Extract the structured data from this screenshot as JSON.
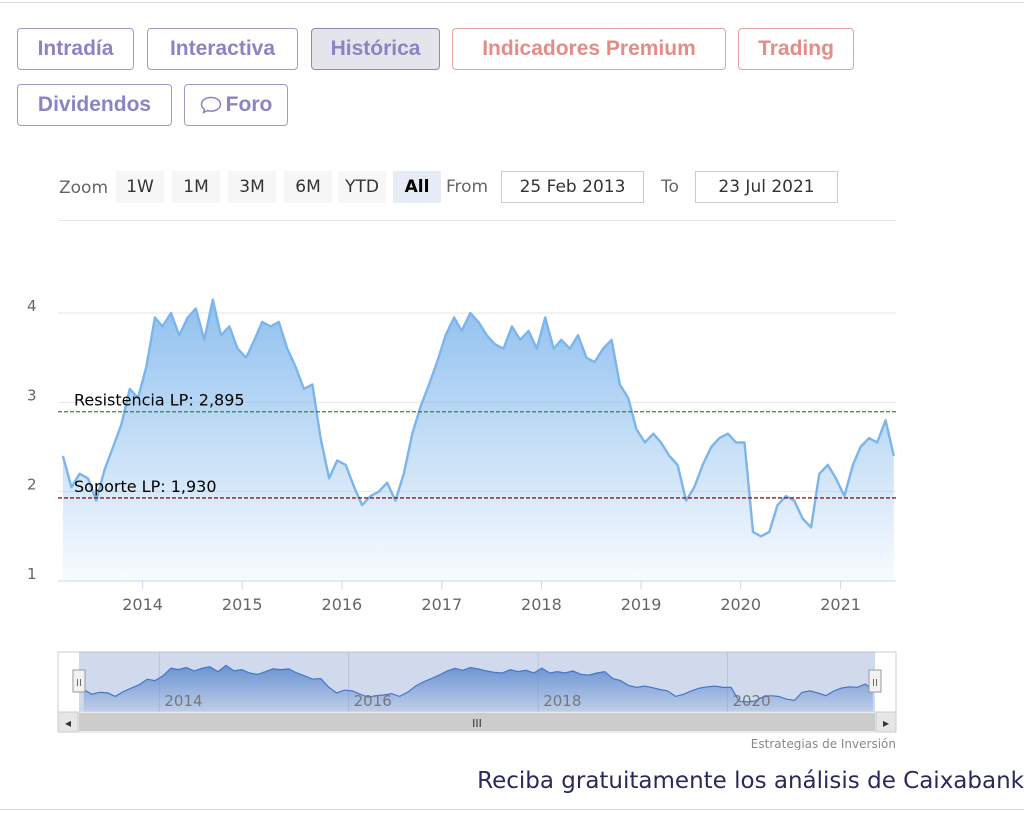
{
  "tabs": [
    {
      "label": "Intradía",
      "style": "normal"
    },
    {
      "label": "Interactiva",
      "style": "normal"
    },
    {
      "label": "Histórica",
      "style": "active"
    },
    {
      "label": "Indicadores Premium",
      "style": "premium"
    },
    {
      "label": "Trading",
      "style": "premium"
    },
    {
      "label": "Dividendos",
      "style": "normal"
    },
    {
      "label": "Foro",
      "style": "normal",
      "icon": "chat-bubble-icon"
    }
  ],
  "range_selector": {
    "zoom_label": "Zoom",
    "buttons": [
      "1W",
      "1M",
      "3M",
      "6M",
      "YTD",
      "All"
    ],
    "selected": "All",
    "from_label": "From",
    "from_value": "25 Feb 2013",
    "to_label": "To",
    "to_value": "23 Jul 2021"
  },
  "chart_data": {
    "type": "area",
    "x_range": [
      "2013-02-25",
      "2021-07-23"
    ],
    "x_ticks": [
      "2014",
      "2015",
      "2016",
      "2017",
      "2018",
      "2019",
      "2020",
      "2021"
    ],
    "y_ticks": [
      1,
      2,
      3,
      4
    ],
    "ylim": [
      1,
      4
    ],
    "grid": true,
    "series_color": "#7cb5ec",
    "series": [
      {
        "x": [
          "2013-03",
          "2013-04",
          "2013-05",
          "2013-06",
          "2013-07",
          "2013-08",
          "2013-09",
          "2013-10",
          "2013-11",
          "2013-12",
          "2014-01",
          "2014-02",
          "2014-03",
          "2014-04",
          "2014-05",
          "2014-06",
          "2014-07",
          "2014-08",
          "2014-09",
          "2014-10",
          "2014-11",
          "2014-12",
          "2015-01",
          "2015-02",
          "2015-03",
          "2015-04",
          "2015-05",
          "2015-06",
          "2015-07",
          "2015-08",
          "2015-09",
          "2015-10",
          "2015-11",
          "2015-12",
          "2016-01",
          "2016-02",
          "2016-03",
          "2016-04",
          "2016-05",
          "2016-06",
          "2016-07",
          "2016-08",
          "2016-09",
          "2016-10",
          "2016-11",
          "2016-12",
          "2017-01",
          "2017-02",
          "2017-03",
          "2017-04",
          "2017-05",
          "2017-06",
          "2017-07",
          "2017-08",
          "2017-09",
          "2017-10",
          "2017-11",
          "2017-12",
          "2018-01",
          "2018-02",
          "2018-03",
          "2018-04",
          "2018-05",
          "2018-06",
          "2018-07",
          "2018-08",
          "2018-09",
          "2018-10",
          "2018-11",
          "2018-12",
          "2019-01",
          "2019-02",
          "2019-03",
          "2019-04",
          "2019-05",
          "2019-06",
          "2019-07",
          "2019-08",
          "2019-09",
          "2019-10",
          "2019-11",
          "2019-12",
          "2020-01",
          "2020-02",
          "2020-03",
          "2020-04",
          "2020-05",
          "2020-06",
          "2020-07",
          "2020-08",
          "2020-09",
          "2020-10",
          "2020-11",
          "2020-12",
          "2021-01",
          "2021-02",
          "2021-03",
          "2021-04",
          "2021-05",
          "2021-06",
          "2021-07"
        ],
        "values": [
          2.4,
          2.05,
          2.2,
          2.15,
          1.9,
          2.25,
          2.5,
          2.75,
          3.15,
          3.05,
          3.4,
          3.95,
          3.85,
          4.0,
          3.75,
          3.95,
          4.05,
          3.7,
          4.15,
          3.75,
          3.85,
          3.6,
          3.5,
          3.7,
          3.9,
          3.85,
          3.9,
          3.6,
          3.4,
          3.15,
          3.2,
          2.6,
          2.15,
          2.35,
          2.3,
          2.05,
          1.85,
          1.95,
          2.0,
          2.1,
          1.9,
          2.2,
          2.65,
          2.95,
          3.2,
          3.45,
          3.75,
          3.95,
          3.8,
          4.0,
          3.9,
          3.75,
          3.65,
          3.6,
          3.85,
          3.7,
          3.8,
          3.6,
          3.95,
          3.6,
          3.7,
          3.6,
          3.75,
          3.5,
          3.45,
          3.6,
          3.7,
          3.2,
          3.05,
          2.7,
          2.55,
          2.65,
          2.55,
          2.4,
          2.3,
          1.9,
          2.05,
          2.3,
          2.5,
          2.6,
          2.65,
          2.55,
          2.55,
          1.55,
          1.5,
          1.55,
          1.85,
          1.95,
          1.9,
          1.7,
          1.6,
          2.2,
          2.3,
          2.15,
          1.95,
          2.3,
          2.5,
          2.6,
          2.55,
          2.8,
          2.4
        ]
      }
    ],
    "plot_lines": [
      {
        "label": "Resistencia LP: 2,895",
        "value": 2.895,
        "color": "#2e8b2e"
      },
      {
        "label": "Soporte LP: 1,930",
        "value": 1.93,
        "color": "#8b1a1a"
      }
    ]
  },
  "navigator": {
    "labels": [
      "2014",
      "2016",
      "2018",
      "2020"
    ],
    "scrollbar_grip": "III",
    "handle_glyph": "II",
    "arrow_left": "◂",
    "arrow_right": "▸"
  },
  "credits": "Estrategias de Inversión",
  "cta_text": "Reciba gratuitamente los análisis de Caixabank"
}
